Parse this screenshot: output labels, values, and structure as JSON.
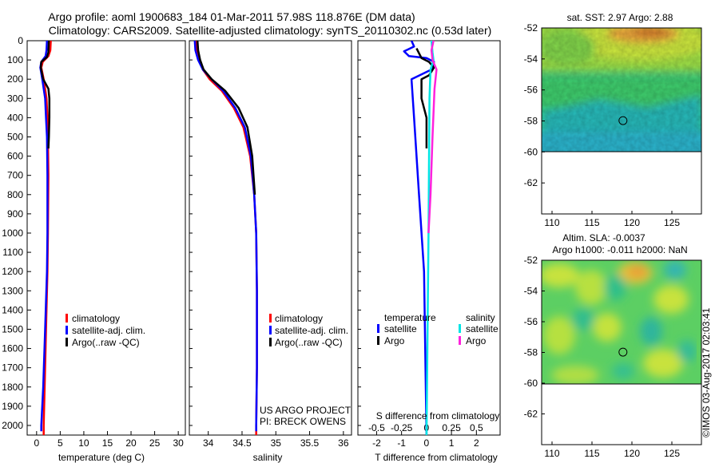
{
  "header": {
    "line1": "Argo profile: aoml 1900683_184 01-Mar-2011 57.98S 118.876E (DM data)",
    "line2": "Climatology: CARS2009. Satellite-adjusted climatology: synTS_20110302.nc (0.53d later)"
  },
  "colors": {
    "climatology": "#ff0000",
    "satellite": "#0000ff",
    "argo": "#000000",
    "sat_salinity": "#00e5e5",
    "argo_salinity": "#ff22dd"
  },
  "chart_data": [
    {
      "type": "line",
      "id": "temperature",
      "xlabel": "temperature (deg C)",
      "xlim": [
        -2,
        31.5
      ],
      "ylim": [
        0,
        2050
      ],
      "xticks": [
        0,
        5,
        10,
        15,
        20,
        25,
        30
      ],
      "yticks": [
        0,
        100,
        200,
        300,
        400,
        500,
        600,
        700,
        800,
        900,
        1000,
        1100,
        1200,
        1300,
        1400,
        1500,
        1600,
        1700,
        1800,
        1900,
        2000
      ],
      "legend": [
        "climatology",
        "satellite-adj. clim.",
        "Argo(..raw -QC)"
      ],
      "series": [
        {
          "name": "climatology",
          "color": "#ff0000",
          "points": [
            [
              3.0,
              0
            ],
            [
              2.9,
              50
            ],
            [
              2.5,
              80
            ],
            [
              1.3,
              110
            ],
            [
              1.0,
              140
            ],
            [
              1.5,
              200
            ],
            [
              2.1,
              300
            ],
            [
              2.3,
              400
            ],
            [
              2.4,
              500
            ],
            [
              2.5,
              700
            ],
            [
              2.4,
              1000
            ],
            [
              2.3,
              1200
            ],
            [
              2.0,
              1500
            ],
            [
              1.7,
              1800
            ],
            [
              1.5,
              2000
            ],
            [
              1.5,
              2050
            ]
          ]
        },
        {
          "name": "satellite-adj. clim.",
          "color": "#0000ff",
          "points": [
            [
              2.2,
              0
            ],
            [
              2.1,
              50
            ],
            [
              1.9,
              80
            ],
            [
              1.0,
              110
            ],
            [
              0.8,
              140
            ],
            [
              1.2,
              200
            ],
            [
              1.8,
              300
            ],
            [
              2.0,
              400
            ],
            [
              2.2,
              500
            ],
            [
              2.3,
              700
            ],
            [
              2.3,
              1000
            ],
            [
              2.2,
              1200
            ],
            [
              1.8,
              1500
            ],
            [
              1.4,
              1800
            ],
            [
              1.0,
              2000
            ],
            [
              1.0,
              2030
            ]
          ]
        },
        {
          "name": "Argo(..raw -QC)",
          "color": "#000000",
          "points": [
            [
              2.6,
              0
            ],
            [
              2.5,
              60
            ],
            [
              2.2,
              85
            ],
            [
              1.0,
              110
            ],
            [
              0.9,
              140
            ],
            [
              1.4,
              200
            ],
            [
              2.5,
              250
            ],
            [
              2.7,
              300
            ],
            [
              2.7,
              400
            ],
            [
              2.6,
              500
            ],
            [
              2.5,
              560
            ]
          ]
        }
      ]
    },
    {
      "type": "line",
      "id": "salinity",
      "xlabel": "salinity",
      "xlim": [
        33.72,
        36.12
      ],
      "ylim": [
        0,
        2050
      ],
      "xticks": [
        34,
        34.5,
        35,
        35.5,
        36
      ],
      "legend": [
        "climatology",
        "satellite-adj. clim.",
        "Argo(..raw -QC)"
      ],
      "series": [
        {
          "name": "climatology",
          "color": "#ff0000",
          "points": [
            [
              33.82,
              0
            ],
            [
              33.83,
              50
            ],
            [
              33.87,
              100
            ],
            [
              33.92,
              150
            ],
            [
              34.02,
              200
            ],
            [
              34.2,
              260
            ],
            [
              34.38,
              350
            ],
            [
              34.52,
              450
            ],
            [
              34.62,
              600
            ],
            [
              34.68,
              800
            ],
            [
              34.71,
              1000
            ],
            [
              34.72,
              1300
            ],
            [
              34.72,
              1700
            ],
            [
              34.71,
              2000
            ],
            [
              34.71,
              2050
            ]
          ]
        },
        {
          "name": "satellite-adj. clim.",
          "color": "#0000ff",
          "points": [
            [
              33.8,
              0
            ],
            [
              33.81,
              50
            ],
            [
              33.85,
              100
            ],
            [
              33.92,
              150
            ],
            [
              34.05,
              200
            ],
            [
              34.22,
              260
            ],
            [
              34.4,
              350
            ],
            [
              34.54,
              450
            ],
            [
              34.63,
              600
            ],
            [
              34.68,
              800
            ],
            [
              34.71,
              1000
            ],
            [
              34.72,
              1300
            ],
            [
              34.72,
              1700
            ],
            [
              34.71,
              2000
            ],
            [
              34.71,
              2030
            ]
          ]
        },
        {
          "name": "Argo(..raw -QC)",
          "color": "#000000",
          "points": [
            [
              33.84,
              0
            ],
            [
              33.85,
              50
            ],
            [
              33.88,
              100
            ],
            [
              33.93,
              150
            ],
            [
              34.05,
              200
            ],
            [
              34.25,
              260
            ],
            [
              34.45,
              350
            ],
            [
              34.58,
              450
            ],
            [
              34.65,
              600
            ],
            [
              34.69,
              800
            ]
          ]
        }
      ]
    },
    {
      "type": "line",
      "id": "difference",
      "xlabel": "T difference from climatology",
      "xlabel_top": "S difference from climatology",
      "xlim": [
        -2.75,
        2.95
      ],
      "ylim": [
        0,
        2050
      ],
      "xticks": [
        -2,
        -1,
        0,
        1,
        2
      ],
      "xticks_salinity": [
        -0.5,
        -0.25,
        0,
        0.25,
        0.5
      ],
      "legend_headers": [
        "temperature",
        "salinity"
      ],
      "legend_temperature": [
        "satellite",
        "Argo"
      ],
      "legend_salinity": [
        "satellite",
        "Argo"
      ],
      "series": [
        {
          "name": "temperature satellite",
          "color": "#0000ff",
          "points": [
            [
              -0.6,
              0
            ],
            [
              -0.5,
              30
            ],
            [
              -0.9,
              55
            ],
            [
              -0.7,
              80
            ],
            [
              0.0,
              90
            ],
            [
              0.3,
              110
            ],
            [
              0.2,
              150
            ],
            [
              -0.6,
              200
            ],
            [
              -0.5,
              400
            ],
            [
              -0.3,
              800
            ],
            [
              -0.1,
              1200
            ],
            [
              0.0,
              2050
            ]
          ]
        },
        {
          "name": "temperature Argo",
          "color": "#000000",
          "points": [
            [
              -0.4,
              40
            ],
            [
              -0.3,
              65
            ],
            [
              -0.2,
              90
            ],
            [
              0.1,
              110
            ],
            [
              0.3,
              140
            ],
            [
              0.1,
              180
            ],
            [
              -0.2,
              200
            ],
            [
              -0.2,
              300
            ],
            [
              0.0,
              400
            ],
            [
              0.0,
              560
            ]
          ]
        },
        {
          "name": "salinity satellite",
          "color": "#00e5e5",
          "points": [
            [
              0.05,
              0
            ],
            [
              0.06,
              60
            ],
            [
              0.07,
              100
            ],
            [
              0.04,
              150
            ],
            [
              0.03,
              300
            ],
            [
              0.02,
              1000
            ],
            [
              0.0,
              2050
            ]
          ]
        },
        {
          "name": "salinity Argo",
          "color": "#ff22dd",
          "points": [
            [
              0.07,
              0
            ],
            [
              0.05,
              50
            ],
            [
              0.06,
              100
            ],
            [
              0.1,
              150
            ],
            [
              0.08,
              250
            ],
            [
              0.06,
              500
            ],
            [
              0.04,
              800
            ],
            [
              0.02,
              1000
            ]
          ]
        }
      ]
    },
    {
      "type": "heatmap",
      "id": "sst-map",
      "title": "sat. SST: 2.97 Argo: 2.88",
      "xticks": [
        110,
        115,
        120,
        125
      ],
      "yticks": [
        -52,
        -54,
        -56,
        -58,
        -60,
        -62
      ],
      "xlim": [
        108.7,
        128.7
      ],
      "ylim": [
        -64,
        -52
      ],
      "float_position": [
        118.876,
        -57.98
      ]
    },
    {
      "type": "heatmap",
      "id": "sla-map",
      "title": "Altim. SLA: -0.0037",
      "subtitle": "Argo h1000: -0.011 h2000: NaN",
      "xticks": [
        110,
        115,
        120,
        125
      ],
      "yticks": [
        -52,
        -54,
        -56,
        -58,
        -60,
        -62
      ],
      "xlim": [
        108.7,
        128.7
      ],
      "ylim": [
        -64,
        -52
      ],
      "float_position": [
        118.876,
        -57.98
      ]
    }
  ],
  "annotations": {
    "project_line1": "US ARGO PROJECT",
    "project_line2": "PI: BRECK OWENS",
    "stamp": "©IMOS 03-Aug-2017 02:03:41"
  }
}
